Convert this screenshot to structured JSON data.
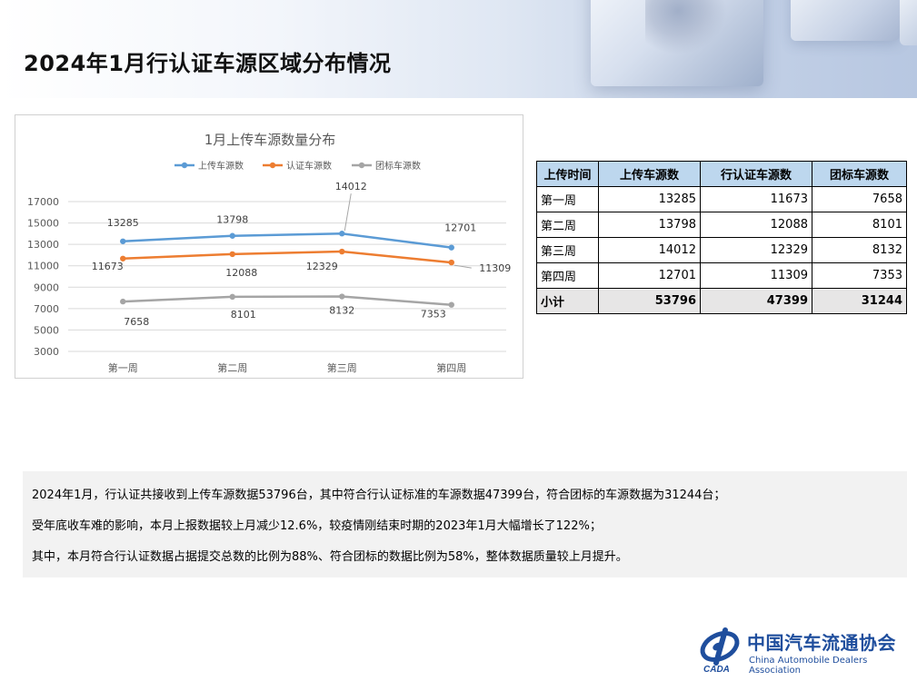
{
  "header": {
    "title": "2024年1月行认证车源区域分布情况"
  },
  "chart_data": {
    "type": "line",
    "title": "1月上传车源数量分布",
    "categories": [
      "第一周",
      "第二周",
      "第三周",
      "第四周"
    ],
    "series": [
      {
        "name": "上传车源数",
        "values": [
          13285,
          13798,
          14012,
          12701
        ],
        "color": "#5b9bd5"
      },
      {
        "name": "认证车源数",
        "values": [
          11673,
          12088,
          12329,
          11309
        ],
        "color": "#ed7d31"
      },
      {
        "name": "团标车源数",
        "values": [
          7658,
          8101,
          8132,
          7353
        ],
        "color": "#a5a5a5"
      }
    ],
    "ylim": [
      3000,
      17000
    ],
    "yticks": [
      3000,
      5000,
      7000,
      9000,
      11000,
      13000,
      15000,
      17000
    ],
    "legend": "top",
    "grid": true
  },
  "table": {
    "headers": [
      "上传时间",
      "上传车源数",
      "行认证车源数",
      "团标车源数"
    ],
    "rows": [
      [
        "第一周",
        "13285",
        "11673",
        "7658"
      ],
      [
        "第二周",
        "13798",
        "12088",
        "8101"
      ],
      [
        "第三周",
        "14012",
        "12329",
        "8132"
      ],
      [
        "第四周",
        "12701",
        "11309",
        "7353"
      ]
    ],
    "total": [
      "小计",
      "53796",
      "47399",
      "31244"
    ]
  },
  "summary": {
    "line1": "2024年1月，行认证共接收到上传车源数据53796台，其中符合行认证标准的车源数据47399台，符合团标的车源数据为31244台；",
    "line2": "受年底收车难的影响，本月上报数据较上月减少12.6%，较疫情刚结束时期的2023年1月大幅增长了122%；",
    "line3": "其中，本月符合行认证数据占据提交总数的比例为88%、符合团标的数据比例为58%，整体数据质量较上月提升。"
  },
  "logo": {
    "cn": "中国汽车流通协会",
    "en": "China Automobile Dealers Association",
    "mark": "CADA"
  }
}
